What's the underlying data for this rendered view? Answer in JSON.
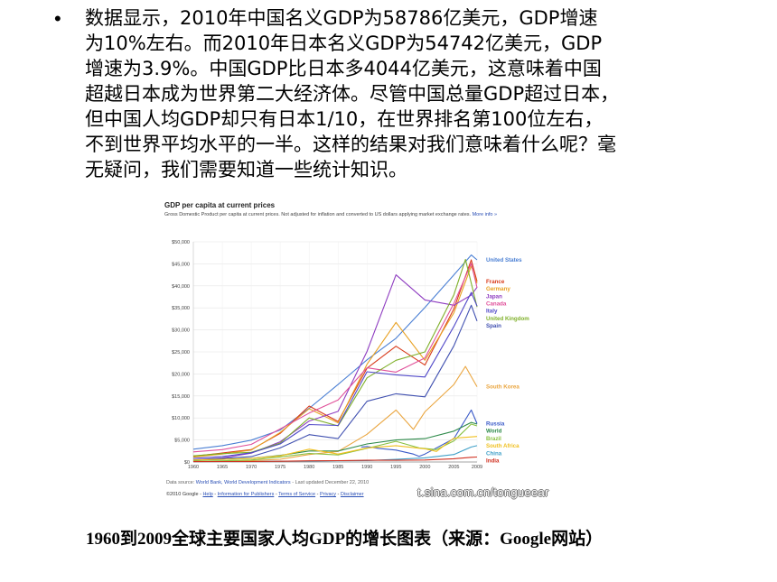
{
  "bullet_symbol": "•",
  "paragraph_lines": [
    "数据显示，2010年中国名义GDP为58786亿美元，GDP增速",
    "为10%左右。而2010年日本名义GDP为54742亿美元，GDP",
    "增速为3.9%。中国GDP比日本多4044亿美元，这意味着中国",
    "超越日本成为世界第二大经济体。尽管中国总量GDP超过日本，",
    "但中国人均GDP却只有日本1/10，在世界排名第100位左右，",
    "不到世界平均水平的一半。这样的结果对我们意味着什么呢？毫",
    "无疑问，我们需要知道一些统计知识。"
  ],
  "chart_header": {
    "title": "GDP per capita at current prices",
    "subtitle": "Gross Domestic Product per capita at current prices. Not adjusted for inflation and converted to US dollars applying market exchange rates.",
    "subtitle_link": "More info »"
  },
  "chart_footer": {
    "source_prefix": "Data source: ",
    "source_link": "World Bank, World Development Indicators",
    "updated": " - Last updated December 22, 2010",
    "copyright": "©2010 Google - ",
    "links": [
      "Help",
      "Information for Publishers",
      "Terms of Service",
      "Privacy",
      "Disclaimer"
    ],
    "separator": " - "
  },
  "watermark": "t.sina.com.cn/tongueear",
  "caption": "1960到2009全球主要国家人均GDP的增长图表（来源：Google网站）",
  "chart_data": {
    "type": "line",
    "title": "GDP per capita at current prices",
    "xlabel": "",
    "ylabel": "",
    "xlim": [
      1960,
      2009
    ],
    "ylim": [
      0,
      50000
    ],
    "x_ticks": [
      1960,
      1965,
      1970,
      1975,
      1980,
      1985,
      1990,
      1995,
      2000,
      2005,
      2009
    ],
    "y_ticks": [
      0,
      5000,
      10000,
      15000,
      20000,
      25000,
      30000,
      35000,
      40000,
      45000,
      50000
    ],
    "y_tick_labels": [
      "$0",
      "$5,000",
      "$10,000",
      "$15,000",
      "$20,000",
      "$25,000",
      "$30,000",
      "$35,000",
      "$40,000",
      "$45,000",
      "$50,000"
    ],
    "grid": true,
    "legend": "right",
    "series": [
      {
        "name": "United States",
        "color": "#4a7fd4",
        "points": [
          [
            1960,
            2900
          ],
          [
            1965,
            3700
          ],
          [
            1970,
            4950
          ],
          [
            1975,
            7250
          ],
          [
            1980,
            12200
          ],
          [
            1985,
            17600
          ],
          [
            1990,
            23200
          ],
          [
            1995,
            28100
          ],
          [
            2000,
            35100
          ],
          [
            2005,
            42500
          ],
          [
            2008,
            47000
          ],
          [
            2009,
            45900
          ]
        ]
      },
      {
        "name": "France",
        "color": "#d83a1a",
        "points": [
          [
            1960,
            1300
          ],
          [
            1965,
            2050
          ],
          [
            1970,
            2800
          ],
          [
            1975,
            6500
          ],
          [
            1980,
            12700
          ],
          [
            1985,
            9200
          ],
          [
            1990,
            21300
          ],
          [
            1995,
            26300
          ],
          [
            2000,
            22000
          ],
          [
            2005,
            34800
          ],
          [
            2008,
            45900
          ],
          [
            2009,
            41000
          ]
        ]
      },
      {
        "name": "Germany",
        "color": "#e8a020",
        "points": [
          [
            1960,
            1100
          ],
          [
            1965,
            1800
          ],
          [
            1970,
            2700
          ],
          [
            1975,
            6700
          ],
          [
            1980,
            12100
          ],
          [
            1985,
            8900
          ],
          [
            1990,
            22200
          ],
          [
            1995,
            31700
          ],
          [
            2000,
            23100
          ],
          [
            2005,
            33900
          ],
          [
            2008,
            44500
          ],
          [
            2009,
            40600
          ]
        ]
      },
      {
        "name": "Japan",
        "color": "#8e3cc0",
        "points": [
          [
            1960,
            480
          ],
          [
            1965,
            920
          ],
          [
            1970,
            2000
          ],
          [
            1975,
            4600
          ],
          [
            1980,
            9300
          ],
          [
            1985,
            11500
          ],
          [
            1990,
            25100
          ],
          [
            1995,
            42500
          ],
          [
            2000,
            36800
          ],
          [
            2005,
            35600
          ],
          [
            2008,
            37900
          ],
          [
            2009,
            39700
          ]
        ]
      },
      {
        "name": "Canada",
        "color": "#e0509a",
        "points": [
          [
            1960,
            2300
          ],
          [
            1965,
            2800
          ],
          [
            1970,
            4000
          ],
          [
            1975,
            7500
          ],
          [
            1980,
            11100
          ],
          [
            1985,
            14100
          ],
          [
            1990,
            21400
          ],
          [
            1995,
            20400
          ],
          [
            2000,
            23600
          ],
          [
            2005,
            36000
          ],
          [
            2008,
            45100
          ],
          [
            2009,
            39600
          ]
        ]
      },
      {
        "name": "United Kingdom",
        "color": "#7fb02a",
        "points": [
          [
            1960,
            1400
          ],
          [
            1965,
            1900
          ],
          [
            1970,
            2200
          ],
          [
            1975,
            4300
          ],
          [
            1980,
            10000
          ],
          [
            1985,
            8200
          ],
          [
            1990,
            19100
          ],
          [
            1995,
            23100
          ],
          [
            2000,
            25000
          ],
          [
            2005,
            38000
          ],
          [
            2007,
            46000
          ],
          [
            2009,
            35200
          ]
        ]
      },
      {
        "name": "Italy",
        "color": "#5048c8",
        "points": [
          [
            1960,
            800
          ],
          [
            1965,
            1250
          ],
          [
            1970,
            2100
          ],
          [
            1975,
            4100
          ],
          [
            1980,
            8500
          ],
          [
            1985,
            8300
          ],
          [
            1990,
            20500
          ],
          [
            1995,
            19800
          ],
          [
            2000,
            19300
          ],
          [
            2005,
            30800
          ],
          [
            2008,
            38500
          ],
          [
            2009,
            35400
          ]
        ]
      },
      {
        "name": "Spain",
        "color": "#4050b0",
        "points": [
          [
            1960,
            400
          ],
          [
            1965,
            800
          ],
          [
            1970,
            1200
          ],
          [
            1975,
            3200
          ],
          [
            1980,
            6200
          ],
          [
            1985,
            5300
          ],
          [
            1990,
            13800
          ],
          [
            1995,
            15500
          ],
          [
            2000,
            14800
          ],
          [
            2005,
            26400
          ],
          [
            2008,
            35600
          ],
          [
            2009,
            32000
          ]
        ]
      },
      {
        "name": "South Korea",
        "color": "#eaa640",
        "points": [
          [
            1960,
            160
          ],
          [
            1965,
            110
          ],
          [
            1970,
            280
          ],
          [
            1975,
            620
          ],
          [
            1980,
            1700
          ],
          [
            1985,
            2400
          ],
          [
            1990,
            6300
          ],
          [
            1995,
            11800
          ],
          [
            1998,
            7400
          ],
          [
            2000,
            11400
          ],
          [
            2005,
            17600
          ],
          [
            2007,
            21700
          ],
          [
            2009,
            17100
          ]
        ]
      },
      {
        "name": "Russia",
        "color": "#3a5ac8",
        "points": [
          [
            1989,
            3400
          ],
          [
            1990,
            3500
          ],
          [
            1992,
            3100
          ],
          [
            1995,
            2700
          ],
          [
            1998,
            1800
          ],
          [
            1999,
            1300
          ],
          [
            2000,
            1800
          ],
          [
            2005,
            5300
          ],
          [
            2008,
            11800
          ],
          [
            2009,
            8700
          ]
        ]
      },
      {
        "name": "World",
        "color": "#2e8a4a",
        "points": [
          [
            1960,
            450
          ],
          [
            1965,
            600
          ],
          [
            1970,
            800
          ],
          [
            1975,
            1500
          ],
          [
            1980,
            2500
          ],
          [
            1985,
            2500
          ],
          [
            1990,
            4100
          ],
          [
            1995,
            5000
          ],
          [
            2000,
            5300
          ],
          [
            2005,
            7000
          ],
          [
            2008,
            9000
          ],
          [
            2009,
            8600
          ]
        ]
      },
      {
        "name": "Brazil",
        "color": "#88c040",
        "points": [
          [
            1960,
            200
          ],
          [
            1965,
            260
          ],
          [
            1970,
            450
          ],
          [
            1975,
            1150
          ],
          [
            1980,
            1950
          ],
          [
            1985,
            1600
          ],
          [
            1990,
            3100
          ],
          [
            1995,
            4700
          ],
          [
            1999,
            3200
          ],
          [
            2002,
            2800
          ],
          [
            2005,
            4800
          ],
          [
            2008,
            8600
          ],
          [
            2009,
            8200
          ]
        ]
      },
      {
        "name": "South Africa",
        "color": "#f0c020",
        "points": [
          [
            1960,
            450
          ],
          [
            1965,
            600
          ],
          [
            1970,
            800
          ],
          [
            1975,
            1400
          ],
          [
            1980,
            2900
          ],
          [
            1985,
            1800
          ],
          [
            1990,
            3200
          ],
          [
            1995,
            3700
          ],
          [
            2000,
            3000
          ],
          [
            2002,
            2400
          ],
          [
            2005,
            5400
          ],
          [
            2008,
            5700
          ],
          [
            2009,
            5800
          ]
        ]
      },
      {
        "name": "China",
        "color": "#40a0c8",
        "points": [
          [
            1960,
            90
          ],
          [
            1965,
            100
          ],
          [
            1970,
            110
          ],
          [
            1975,
            180
          ],
          [
            1980,
            190
          ],
          [
            1985,
            290
          ],
          [
            1990,
            320
          ],
          [
            1995,
            600
          ],
          [
            2000,
            950
          ],
          [
            2005,
            1700
          ],
          [
            2008,
            3400
          ],
          [
            2009,
            3700
          ]
        ]
      },
      {
        "name": "India",
        "color": "#d03020",
        "points": [
          [
            1960,
            80
          ],
          [
            1965,
            110
          ],
          [
            1970,
            110
          ],
          [
            1975,
            160
          ],
          [
            1980,
            270
          ],
          [
            1985,
            300
          ],
          [
            1990,
            390
          ],
          [
            1995,
            380
          ],
          [
            2000,
            460
          ],
          [
            2005,
            740
          ],
          [
            2008,
            1060
          ],
          [
            2009,
            1130
          ]
        ]
      }
    ]
  }
}
